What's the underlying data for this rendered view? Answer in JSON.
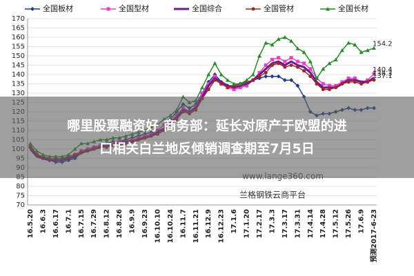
{
  "chart_data": {
    "type": "line",
    "categories": [
      "16.5.20",
      null,
      "16.6.3",
      null,
      "16.6.17",
      null,
      "16.7.1",
      null,
      "16.7.15",
      null,
      "16.7.29",
      null,
      "16.8.12",
      null,
      "16.8.26",
      null,
      "16.9.9",
      null,
      "16.9.23",
      null,
      "16.10.10",
      null,
      "16.10.24",
      null,
      "16.11.7",
      null,
      "16.11.21",
      null,
      "16.12.9",
      null,
      "16.12.23",
      null,
      "17.1.6",
      null,
      "17.1.20",
      null,
      "17.2.17",
      null,
      "17.3.3",
      null,
      "17.3.17",
      null,
      "17.3.31",
      null,
      "17.4.14",
      null,
      "17.4.28",
      null,
      "17.5.12",
      null,
      "17.5.26",
      null,
      "17.6.9",
      null,
      "预测2017-6-23"
    ],
    "series": [
      {
        "name": "全国板材",
        "color": "#1f3c88",
        "marker": "diamond",
        "values": [
          102,
          97,
          95,
          94,
          93,
          93,
          94,
          95,
          98,
          100,
          101,
          102,
          103,
          104,
          104,
          105,
          106,
          107,
          108,
          109,
          110,
          113,
          116,
          120,
          124,
          122,
          124,
          130,
          136,
          140,
          136,
          134,
          134,
          135,
          136,
          137,
          138,
          139,
          139,
          139,
          137,
          137,
          134,
          128,
          120,
          118,
          119,
          119,
          120,
          121,
          122,
          121,
          121,
          122,
          122
        ]
      },
      {
        "name": "全国型材",
        "color": "#e83ec9",
        "marker": "square",
        "end_label": true,
        "values": [
          101,
          97,
          95,
          95,
          95,
          95,
          96,
          97,
          99,
          100,
          101,
          102,
          102,
          103,
          104,
          104,
          105,
          106,
          107,
          108,
          110,
          113,
          115,
          118,
          122,
          120,
          123,
          130,
          135,
          139,
          135,
          133,
          132,
          133,
          134,
          137,
          141,
          145,
          148,
          149,
          147,
          149,
          147,
          146,
          143,
          138,
          135,
          134,
          134,
          136,
          138,
          138,
          136,
          137,
          140.4
        ]
      },
      {
        "name": "全国综合",
        "color": "#6a1b8a",
        "marker": "none",
        "width": 3,
        "end_label": true,
        "values": [
          100,
          96,
          95,
          94,
          94,
          94,
          95,
          96,
          98,
          99,
          100,
          101,
          102,
          102,
          103,
          104,
          104,
          105,
          106,
          107,
          109,
          111,
          114,
          117,
          121,
          120,
          122,
          128,
          134,
          138,
          136,
          134,
          133,
          134,
          135,
          137,
          140,
          143,
          146,
          147,
          145,
          147,
          145,
          144,
          141,
          136,
          133,
          133,
          133,
          135,
          137,
          137,
          136,
          136,
          138.3
        ]
      },
      {
        "name": "全国管材",
        "color": "#a0262a",
        "marker": "circle",
        "end_label": true,
        "values": [
          101,
          97,
          96,
          95,
          95,
          95,
          96,
          97,
          98,
          99,
          100,
          101,
          101,
          102,
          102,
          103,
          104,
          105,
          106,
          107,
          108,
          110,
          113,
          116,
          120,
          119,
          121,
          127,
          132,
          137,
          135,
          133,
          134,
          135,
          136,
          137,
          139,
          141,
          145,
          146,
          144,
          145,
          144,
          142,
          139,
          135,
          132,
          132,
          133,
          135,
          136,
          136,
          135,
          136,
          137.1
        ]
      },
      {
        "name": "全国长材",
        "color": "#2a8a2a",
        "marker": "triangle",
        "end_label": true,
        "values": [
          103,
          99,
          97,
          96,
          96,
          96,
          97,
          100,
          103,
          103,
          104,
          105,
          105,
          106,
          106,
          107,
          108,
          109,
          110,
          112,
          113,
          116,
          118,
          121,
          128,
          125,
          126,
          133,
          140,
          146,
          140,
          137,
          135,
          135,
          137,
          140,
          150,
          157,
          156,
          159,
          160,
          158,
          154,
          152,
          147,
          138,
          143,
          146,
          148,
          153,
          157,
          156,
          152,
          153,
          154.2
        ]
      }
    ],
    "ylim": [
      70,
      170
    ],
    "yticks": [
      70,
      75,
      80,
      85,
      90,
      95,
      100,
      105,
      110,
      115,
      120,
      125,
      130,
      135,
      140,
      145,
      150,
      155,
      160,
      165,
      170
    ],
    "grid": true,
    "legend": "top"
  },
  "banner": [
    "哪里股票融资好 商务部：延长对原产于欧盟的进",
    "口相关白兰地反倾销调查期至7月5日"
  ],
  "watermark": [
    "www.lange360.com",
    "兰格钢铁云商平台"
  ]
}
